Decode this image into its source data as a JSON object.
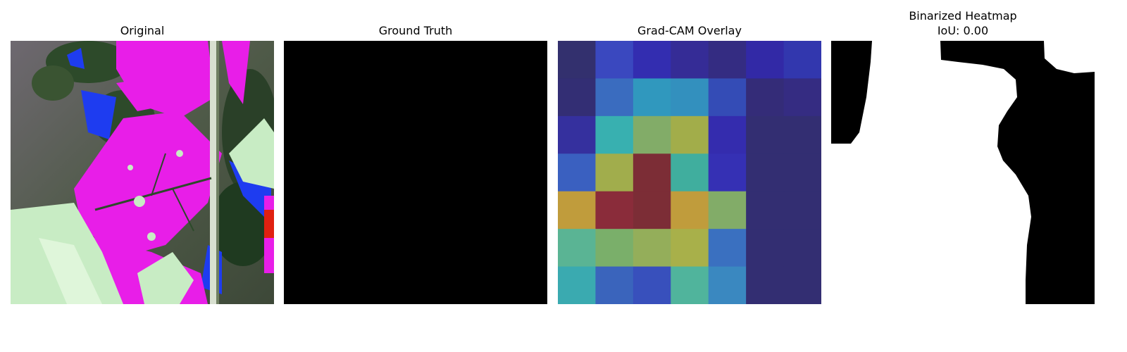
{
  "panels": [
    {
      "title": "Original"
    },
    {
      "title": "Ground Truth"
    },
    {
      "title": "Grad-CAM Overlay"
    },
    {
      "title": "Binarized Heatmap",
      "subtitle": "IoU: 0.00"
    }
  ],
  "gradcam": {
    "rows": 7,
    "cols": 7,
    "cell_colors": [
      [
        "#33306e",
        "#3a48bf",
        "#332db0",
        "#352c96",
        "#342c82",
        "#3229a6",
        "#3237ae"
      ],
      [
        "#332e74",
        "#3a6cbf",
        "#3098be",
        "#3390be",
        "#344cb6",
        "#342c78",
        "#352c82"
      ],
      [
        "#35309e",
        "#38b0b0",
        "#82ac68",
        "#a2ad4a",
        "#342cae",
        "#332e72",
        "#332e72"
      ],
      [
        "#3a60c0",
        "#a1ad4c",
        "#7c2d36",
        "#40ae9e",
        "#3530b4",
        "#332e72",
        "#332e72"
      ],
      [
        "#c09c3c",
        "#8a2c3a",
        "#7c2d36",
        "#c09c3c",
        "#82ac68",
        "#332e72",
        "#332e72"
      ],
      [
        "#5ab494",
        "#7aaf6a",
        "#94ae5a",
        "#a8b04a",
        "#3a70c0",
        "#332e72",
        "#332e72"
      ],
      [
        "#3aaab0",
        "#3a64bc",
        "#3850bc",
        "#50b49c",
        "#3a88c0",
        "#332e72",
        "#332e72"
      ]
    ]
  },
  "colors": {
    "ground_truth": "#000000",
    "mask_fg": "#ffffff",
    "mask_bg": "#000000"
  }
}
